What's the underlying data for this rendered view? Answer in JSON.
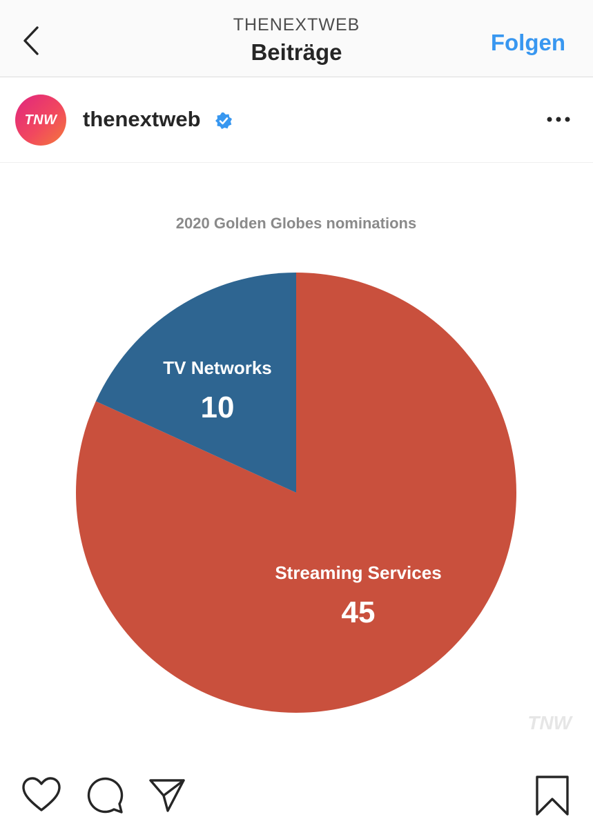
{
  "header": {
    "account_label": "THENEXTWEB",
    "title": "Beiträge",
    "follow_label": "Folgen"
  },
  "post": {
    "avatar_text": "TNW",
    "username": "thenextweb",
    "verified": true,
    "watermark": "TNW"
  },
  "colors": {
    "accent": "#3897f0",
    "slice_streaming": "#c9503d",
    "slice_tv": "#2e6591",
    "title_gray": "#8a8a8a"
  },
  "icons": [
    "back-icon",
    "verified-icon",
    "more-icon",
    "heart-icon",
    "comment-icon",
    "share-icon",
    "bookmark-icon"
  ],
  "chart_data": {
    "type": "pie",
    "title": "2020 Golden Globes nominations",
    "slices": [
      {
        "label": "Streaming Services",
        "value": 45,
        "color": "#c9503d"
      },
      {
        "label": "TV Networks",
        "value": 10,
        "color": "#2e6591"
      }
    ]
  }
}
